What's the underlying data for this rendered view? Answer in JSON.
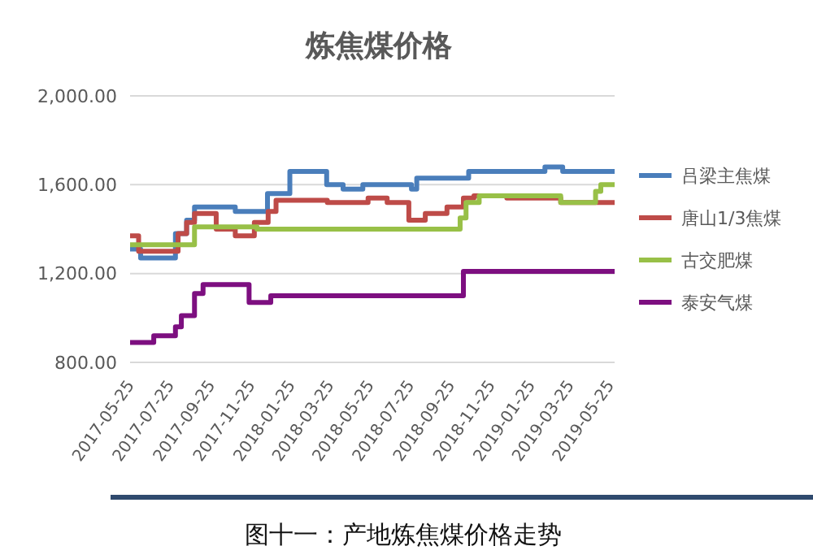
{
  "chart_data": {
    "type": "step",
    "title": "炼焦煤价格",
    "annotations": [
      "图十一：产地炼焦煤价格走势"
    ],
    "xlim": [
      "2017-05-25",
      "2019-06-01"
    ],
    "xticks": [
      "2017-05-25",
      "2017-07-25",
      "2017-09-25",
      "2017-11-25",
      "2018-01-25",
      "2018-03-25",
      "2018-05-25",
      "2018-07-25",
      "2018-09-25",
      "2018-11-25",
      "2019-01-25",
      "2019-03-25",
      "2019-05-25"
    ],
    "ylim": [
      800,
      2000
    ],
    "yticks": [
      {
        "value": 800,
        "label": "800.00"
      },
      {
        "value": 1200,
        "label": "1,200.00"
      },
      {
        "value": 1600,
        "label": "1,600.00"
      },
      {
        "value": 2000,
        "label": "2,000.00"
      }
    ],
    "grid": "y",
    "legend": "right",
    "line_style": "solid",
    "marker": "none",
    "series": [
      {
        "name": "吕梁主焦煤",
        "color": "#4a7ebb",
        "x": [
          "2017-05-25",
          "2017-06-10",
          "2017-08-02",
          "2017-08-19",
          "2017-08-31",
          "2017-11-01",
          "2017-12-20",
          "2018-01-23",
          "2018-03-20",
          "2018-04-14",
          "2018-05-14",
          "2018-07-27",
          "2018-08-04",
          "2018-10-22",
          "2019-02-15",
          "2019-03-14",
          "2019-06-01"
        ],
        "values": [
          1310,
          1270,
          1380,
          1440,
          1500,
          1480,
          1560,
          1660,
          1600,
          1580,
          1600,
          1580,
          1630,
          1660,
          1680,
          1660,
          1660
        ]
      },
      {
        "name": "唐山1/3焦煤",
        "color": "#be4b48",
        "x": [
          "2017-05-25",
          "2017-06-07",
          "2017-08-06",
          "2017-08-19",
          "2017-08-31",
          "2017-10-03",
          "2017-11-01",
          "2017-11-30",
          "2017-12-21",
          "2018-01-02",
          "2018-03-21",
          "2018-05-22",
          "2018-06-20",
          "2018-07-23",
          "2018-08-17",
          "2018-09-19",
          "2018-10-14",
          "2018-10-30",
          "2018-12-19",
          "2019-03-11",
          "2019-06-01"
        ],
        "values": [
          1370,
          1300,
          1380,
          1430,
          1470,
          1400,
          1370,
          1430,
          1480,
          1530,
          1520,
          1540,
          1520,
          1440,
          1470,
          1500,
          1540,
          1550,
          1540,
          1520,
          1520
        ]
      },
      {
        "name": "古交肥煤",
        "color": "#98c047",
        "x": [
          "2017-05-25",
          "2017-08-31",
          "2017-12-04",
          "2018-10-09",
          "2018-10-18",
          "2018-11-07",
          "2019-03-11",
          "2019-05-03",
          "2019-05-11",
          "2019-06-01"
        ],
        "values": [
          1330,
          1410,
          1400,
          1450,
          1520,
          1550,
          1520,
          1570,
          1600,
          1600
        ]
      },
      {
        "name": "泰安气煤",
        "color": "#7d0f80",
        "x": [
          "2017-05-25",
          "2017-06-30",
          "2017-08-02",
          "2017-08-11",
          "2017-08-31",
          "2017-09-13",
          "2017-11-22",
          "2017-12-25",
          "2018-10-14",
          "2019-06-01"
        ],
        "values": [
          890,
          920,
          960,
          1010,
          1110,
          1150,
          1070,
          1100,
          1210,
          1210
        ]
      }
    ]
  }
}
